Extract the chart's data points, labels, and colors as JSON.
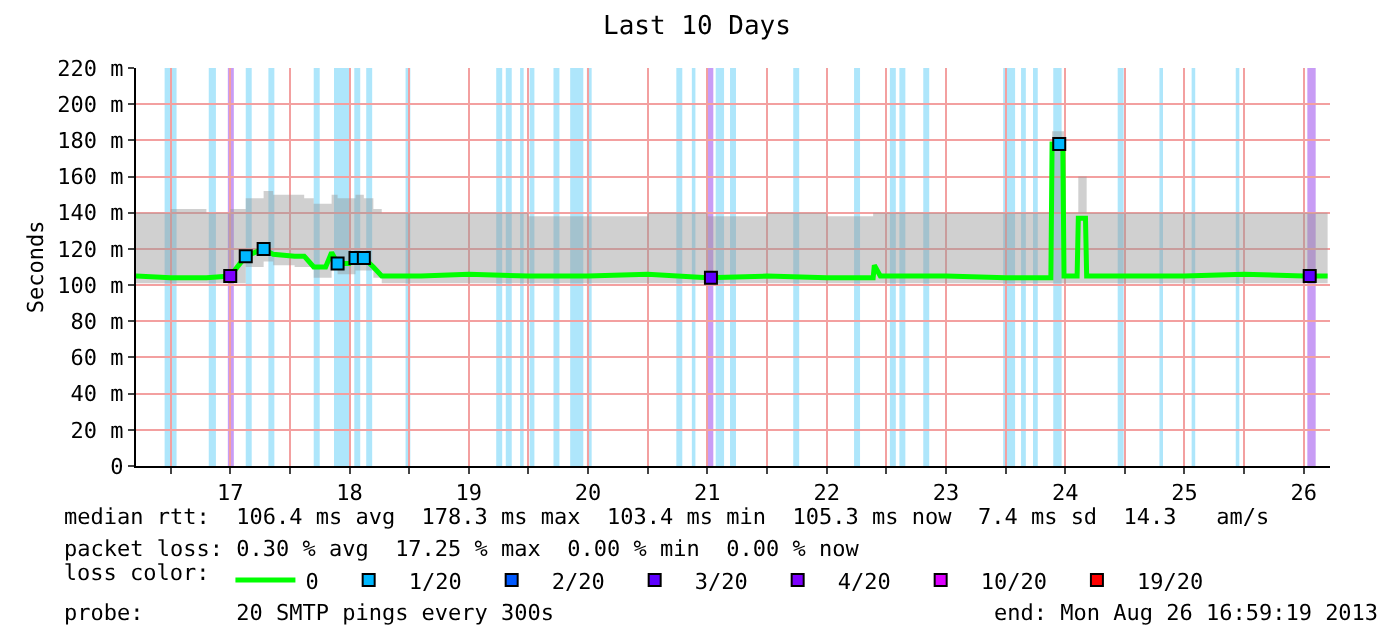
{
  "chart_data": {
    "type": "line",
    "title": "Last 10 Days",
    "ylabel": "Seconds",
    "legend_title": "loss color:",
    "legend": "bottom",
    "grid": true,
    "xlim": [
      16.21,
      26.22
    ],
    "ylim": [
      0,
      220
    ],
    "xticks": [
      {
        "value": 16.5,
        "label": null
      },
      17,
      {
        "value": 17.5,
        "label": null
      },
      18,
      {
        "value": 18.5,
        "label": null
      },
      19,
      {
        "value": 19.5,
        "label": null
      },
      20,
      {
        "value": 20.5,
        "label": null
      },
      21,
      {
        "value": 21.5,
        "label": null
      },
      22,
      {
        "value": 22.5,
        "label": null
      },
      23,
      {
        "value": 23.5,
        "label": null
      },
      24,
      {
        "value": 24.5,
        "label": null
      },
      25,
      {
        "value": 25.5,
        "label": null
      },
      26
    ],
    "yticks": [
      0,
      {
        "value": 20,
        "label": "20 m"
      },
      {
        "value": 40,
        "label": "40 m"
      },
      {
        "value": 60,
        "label": "60 m"
      },
      {
        "value": 80,
        "label": "80 m"
      },
      {
        "value": 100,
        "label": "100 m"
      },
      {
        "value": 120,
        "label": "120 m"
      },
      {
        "value": 140,
        "label": "140 m"
      },
      {
        "value": 160,
        "label": "160 m"
      },
      {
        "value": 180,
        "label": "180 m"
      },
      {
        "value": 200,
        "label": "200 m"
      },
      {
        "value": 220,
        "label": "220 m"
      }
    ],
    "series": [
      {
        "name": "0",
        "color": "#00ff00",
        "x": [
          16.21,
          16.5,
          16.8,
          17.0,
          17.13,
          17.28,
          17.36,
          17.54,
          17.62,
          17.7,
          17.8,
          17.85,
          17.9,
          18.0,
          18.05,
          18.12,
          18.2,
          18.27,
          18.6,
          19.0,
          19.5,
          20.0,
          20.5,
          21.0,
          21.5,
          22.0,
          22.39,
          22.4,
          22.45,
          23.0,
          23.5,
          23.88,
          23.89,
          23.98,
          23.99,
          24.1,
          24.11,
          24.17,
          24.18,
          24.5,
          25.0,
          25.5,
          26.0,
          26.2
        ],
        "values": [
          105,
          104,
          104,
          105,
          116,
          120,
          117,
          116,
          116,
          110,
          110,
          118,
          112,
          112,
          115,
          115,
          110,
          105,
          105,
          106,
          105,
          105,
          106,
          104,
          105,
          104,
          104,
          111,
          105,
          105,
          104,
          104,
          178,
          178,
          105,
          105,
          137,
          137,
          105,
          105,
          105,
          106,
          105,
          105
        ],
        "lower": [
          101,
          101,
          101,
          101,
          110,
          113,
          111,
          110,
          110,
          104,
          104,
          110,
          106,
          106,
          108,
          108,
          104,
          101,
          101,
          101,
          101,
          101,
          101,
          101,
          101,
          101,
          101,
          101,
          101,
          101,
          101,
          101,
          101,
          101,
          101,
          101,
          101,
          101,
          101,
          101,
          101,
          101,
          101,
          101
        ],
        "upper": [
          140,
          142,
          140,
          142,
          148,
          152,
          150,
          150,
          148,
          145,
          145,
          150,
          148,
          148,
          150,
          148,
          142,
          140,
          140,
          140,
          138,
          138,
          140,
          138,
          140,
          138,
          140,
          140,
          140,
          140,
          140,
          140,
          185,
          185,
          140,
          140,
          160,
          160,
          140,
          140,
          140,
          140,
          140,
          140
        ]
      },
      {
        "name": "1/20",
        "color": "#00b8ff",
        "type": "scatter",
        "marker": "square",
        "x": [
          17.13,
          17.28,
          17.9,
          18.05,
          18.12,
          23.95
        ],
        "values": [
          116,
          120,
          112,
          115,
          115,
          178
        ]
      },
      {
        "name": "2/20",
        "color": "#0059ff",
        "type": "scatter",
        "marker": "square"
      },
      {
        "name": "3/20",
        "color": "#5e00ff",
        "type": "scatter",
        "marker": "square",
        "x": [
          21.03,
          26.05
        ],
        "values": [
          104,
          105
        ]
      },
      {
        "name": "4/20",
        "color": "#7e00ff",
        "type": "scatter",
        "marker": "square",
        "x": [
          17.0
        ],
        "values": [
          105
        ]
      },
      {
        "name": "10/20",
        "color": "#dd00ff",
        "type": "scatter",
        "marker": "square"
      },
      {
        "name": "19/20",
        "color": "#ff0000",
        "type": "scatter",
        "marker": "square"
      }
    ],
    "bands": [
      {
        "axis": "x",
        "from": 16.45,
        "to": 16.55,
        "color": "#aee6fb"
      },
      {
        "axis": "x",
        "from": 16.82,
        "to": 16.88,
        "color": "#aee6fb"
      },
      {
        "axis": "x",
        "from": 16.98,
        "to": 17.03,
        "color": "#c89cf5"
      },
      {
        "axis": "x",
        "from": 17.13,
        "to": 17.18,
        "color": "#aee6fb"
      },
      {
        "axis": "x",
        "from": 17.32,
        "to": 17.37,
        "color": "#aee6fb"
      },
      {
        "axis": "x",
        "from": 17.7,
        "to": 17.75,
        "color": "#aee6fb"
      },
      {
        "axis": "x",
        "from": 17.87,
        "to": 18.0,
        "color": "#aee6fb"
      },
      {
        "axis": "x",
        "from": 18.04,
        "to": 18.09,
        "color": "#aee6fb"
      },
      {
        "axis": "x",
        "from": 18.14,
        "to": 18.19,
        "color": "#aee6fb"
      },
      {
        "axis": "x",
        "from": 18.47,
        "to": 18.51,
        "color": "#aee6fb"
      },
      {
        "axis": "x",
        "from": 19.23,
        "to": 19.28,
        "color": "#aee6fb"
      },
      {
        "axis": "x",
        "from": 19.31,
        "to": 19.36,
        "color": "#aee6fb"
      },
      {
        "axis": "x",
        "from": 19.43,
        "to": 19.46,
        "color": "#aee6fb"
      },
      {
        "axis": "x",
        "from": 19.51,
        "to": 19.55,
        "color": "#aee6fb"
      },
      {
        "axis": "x",
        "from": 19.71,
        "to": 19.76,
        "color": "#aee6fb"
      },
      {
        "axis": "x",
        "from": 19.85,
        "to": 19.96,
        "color": "#aee6fb"
      },
      {
        "axis": "x",
        "from": 19.99,
        "to": 20.03,
        "color": "#aee6fb"
      },
      {
        "axis": "x",
        "from": 20.74,
        "to": 20.79,
        "color": "#aee6fb"
      },
      {
        "axis": "x",
        "from": 20.87,
        "to": 20.9,
        "color": "#aee6fb"
      },
      {
        "axis": "x",
        "from": 20.99,
        "to": 21.05,
        "color": "#c89cf5"
      },
      {
        "axis": "x",
        "from": 21.07,
        "to": 21.14,
        "color": "#aee6fb"
      },
      {
        "axis": "x",
        "from": 21.19,
        "to": 21.24,
        "color": "#aee6fb"
      },
      {
        "axis": "x",
        "from": 21.72,
        "to": 21.77,
        "color": "#aee6fb"
      },
      {
        "axis": "x",
        "from": 22.23,
        "to": 22.28,
        "color": "#aee6fb"
      },
      {
        "axis": "x",
        "from": 22.53,
        "to": 22.58,
        "color": "#aee6fb"
      },
      {
        "axis": "x",
        "from": 22.61,
        "to": 22.66,
        "color": "#aee6fb"
      },
      {
        "axis": "x",
        "from": 22.81,
        "to": 22.86,
        "color": "#aee6fb"
      },
      {
        "axis": "x",
        "from": 23.48,
        "to": 23.58,
        "color": "#aee6fb"
      },
      {
        "axis": "x",
        "from": 23.63,
        "to": 23.67,
        "color": "#aee6fb"
      },
      {
        "axis": "x",
        "from": 23.73,
        "to": 23.77,
        "color": "#aee6fb"
      },
      {
        "axis": "x",
        "from": 23.9,
        "to": 23.97,
        "color": "#aee6fb"
      },
      {
        "axis": "x",
        "from": 24.44,
        "to": 24.49,
        "color": "#aee6fb"
      },
      {
        "axis": "x",
        "from": 24.79,
        "to": 24.82,
        "color": "#aee6fb"
      },
      {
        "axis": "x",
        "from": 25.06,
        "to": 25.09,
        "color": "#aee6fb"
      },
      {
        "axis": "x",
        "from": 25.43,
        "to": 25.46,
        "color": "#aee6fb"
      },
      {
        "axis": "x",
        "from": 26.03,
        "to": 26.1,
        "color": "#c89cf5"
      }
    ],
    "annotations": [
      "median rtt:  106.4 ms avg  178.3 ms max  103.4 ms min  105.3 ms now  7.4 ms sd  14.3   am/s",
      "packet loss: 0.30 % avg  17.25 % max  0.00 % min  0.00 % now",
      "probe:       20 SMTP pings every 300s",
      "end: Mon Aug 26 16:59:19 2013"
    ]
  }
}
